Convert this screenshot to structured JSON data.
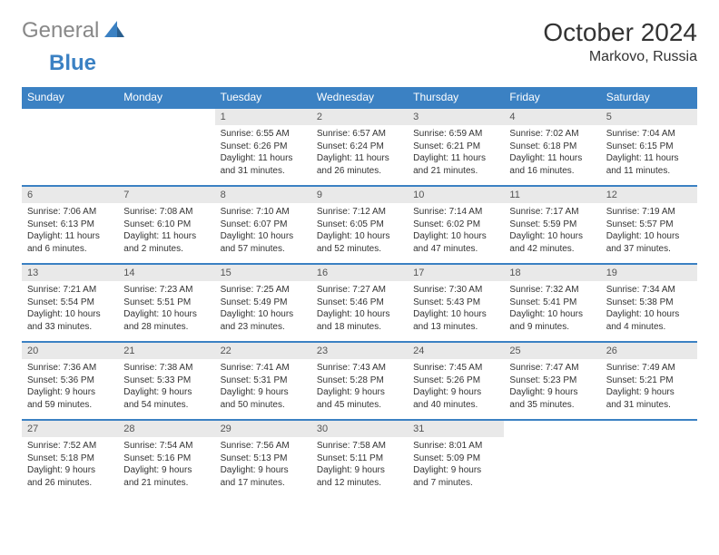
{
  "brand": {
    "text1": "General",
    "text2": "Blue"
  },
  "header": {
    "title": "October 2024",
    "location": "Markovo, Russia"
  },
  "colors": {
    "accent": "#3b81c3",
    "header_gray": "#e9e9e9",
    "text": "#333333",
    "logo_gray": "#888888"
  },
  "day_headers": [
    "Sunday",
    "Monday",
    "Tuesday",
    "Wednesday",
    "Thursday",
    "Friday",
    "Saturday"
  ],
  "weeks": [
    [
      null,
      null,
      {
        "num": "1",
        "sunrise": "Sunrise: 6:55 AM",
        "sunset": "Sunset: 6:26 PM",
        "daylight": "Daylight: 11 hours and 31 minutes."
      },
      {
        "num": "2",
        "sunrise": "Sunrise: 6:57 AM",
        "sunset": "Sunset: 6:24 PM",
        "daylight": "Daylight: 11 hours and 26 minutes."
      },
      {
        "num": "3",
        "sunrise": "Sunrise: 6:59 AM",
        "sunset": "Sunset: 6:21 PM",
        "daylight": "Daylight: 11 hours and 21 minutes."
      },
      {
        "num": "4",
        "sunrise": "Sunrise: 7:02 AM",
        "sunset": "Sunset: 6:18 PM",
        "daylight": "Daylight: 11 hours and 16 minutes."
      },
      {
        "num": "5",
        "sunrise": "Sunrise: 7:04 AM",
        "sunset": "Sunset: 6:15 PM",
        "daylight": "Daylight: 11 hours and 11 minutes."
      }
    ],
    [
      {
        "num": "6",
        "sunrise": "Sunrise: 7:06 AM",
        "sunset": "Sunset: 6:13 PM",
        "daylight": "Daylight: 11 hours and 6 minutes."
      },
      {
        "num": "7",
        "sunrise": "Sunrise: 7:08 AM",
        "sunset": "Sunset: 6:10 PM",
        "daylight": "Daylight: 11 hours and 2 minutes."
      },
      {
        "num": "8",
        "sunrise": "Sunrise: 7:10 AM",
        "sunset": "Sunset: 6:07 PM",
        "daylight": "Daylight: 10 hours and 57 minutes."
      },
      {
        "num": "9",
        "sunrise": "Sunrise: 7:12 AM",
        "sunset": "Sunset: 6:05 PM",
        "daylight": "Daylight: 10 hours and 52 minutes."
      },
      {
        "num": "10",
        "sunrise": "Sunrise: 7:14 AM",
        "sunset": "Sunset: 6:02 PM",
        "daylight": "Daylight: 10 hours and 47 minutes."
      },
      {
        "num": "11",
        "sunrise": "Sunrise: 7:17 AM",
        "sunset": "Sunset: 5:59 PM",
        "daylight": "Daylight: 10 hours and 42 minutes."
      },
      {
        "num": "12",
        "sunrise": "Sunrise: 7:19 AM",
        "sunset": "Sunset: 5:57 PM",
        "daylight": "Daylight: 10 hours and 37 minutes."
      }
    ],
    [
      {
        "num": "13",
        "sunrise": "Sunrise: 7:21 AM",
        "sunset": "Sunset: 5:54 PM",
        "daylight": "Daylight: 10 hours and 33 minutes."
      },
      {
        "num": "14",
        "sunrise": "Sunrise: 7:23 AM",
        "sunset": "Sunset: 5:51 PM",
        "daylight": "Daylight: 10 hours and 28 minutes."
      },
      {
        "num": "15",
        "sunrise": "Sunrise: 7:25 AM",
        "sunset": "Sunset: 5:49 PM",
        "daylight": "Daylight: 10 hours and 23 minutes."
      },
      {
        "num": "16",
        "sunrise": "Sunrise: 7:27 AM",
        "sunset": "Sunset: 5:46 PM",
        "daylight": "Daylight: 10 hours and 18 minutes."
      },
      {
        "num": "17",
        "sunrise": "Sunrise: 7:30 AM",
        "sunset": "Sunset: 5:43 PM",
        "daylight": "Daylight: 10 hours and 13 minutes."
      },
      {
        "num": "18",
        "sunrise": "Sunrise: 7:32 AM",
        "sunset": "Sunset: 5:41 PM",
        "daylight": "Daylight: 10 hours and 9 minutes."
      },
      {
        "num": "19",
        "sunrise": "Sunrise: 7:34 AM",
        "sunset": "Sunset: 5:38 PM",
        "daylight": "Daylight: 10 hours and 4 minutes."
      }
    ],
    [
      {
        "num": "20",
        "sunrise": "Sunrise: 7:36 AM",
        "sunset": "Sunset: 5:36 PM",
        "daylight": "Daylight: 9 hours and 59 minutes."
      },
      {
        "num": "21",
        "sunrise": "Sunrise: 7:38 AM",
        "sunset": "Sunset: 5:33 PM",
        "daylight": "Daylight: 9 hours and 54 minutes."
      },
      {
        "num": "22",
        "sunrise": "Sunrise: 7:41 AM",
        "sunset": "Sunset: 5:31 PM",
        "daylight": "Daylight: 9 hours and 50 minutes."
      },
      {
        "num": "23",
        "sunrise": "Sunrise: 7:43 AM",
        "sunset": "Sunset: 5:28 PM",
        "daylight": "Daylight: 9 hours and 45 minutes."
      },
      {
        "num": "24",
        "sunrise": "Sunrise: 7:45 AM",
        "sunset": "Sunset: 5:26 PM",
        "daylight": "Daylight: 9 hours and 40 minutes."
      },
      {
        "num": "25",
        "sunrise": "Sunrise: 7:47 AM",
        "sunset": "Sunset: 5:23 PM",
        "daylight": "Daylight: 9 hours and 35 minutes."
      },
      {
        "num": "26",
        "sunrise": "Sunrise: 7:49 AM",
        "sunset": "Sunset: 5:21 PM",
        "daylight": "Daylight: 9 hours and 31 minutes."
      }
    ],
    [
      {
        "num": "27",
        "sunrise": "Sunrise: 7:52 AM",
        "sunset": "Sunset: 5:18 PM",
        "daylight": "Daylight: 9 hours and 26 minutes."
      },
      {
        "num": "28",
        "sunrise": "Sunrise: 7:54 AM",
        "sunset": "Sunset: 5:16 PM",
        "daylight": "Daylight: 9 hours and 21 minutes."
      },
      {
        "num": "29",
        "sunrise": "Sunrise: 7:56 AM",
        "sunset": "Sunset: 5:13 PM",
        "daylight": "Daylight: 9 hours and 17 minutes."
      },
      {
        "num": "30",
        "sunrise": "Sunrise: 7:58 AM",
        "sunset": "Sunset: 5:11 PM",
        "daylight": "Daylight: 9 hours and 12 minutes."
      },
      {
        "num": "31",
        "sunrise": "Sunrise: 8:01 AM",
        "sunset": "Sunset: 5:09 PM",
        "daylight": "Daylight: 9 hours and 7 minutes."
      },
      null,
      null
    ]
  ]
}
